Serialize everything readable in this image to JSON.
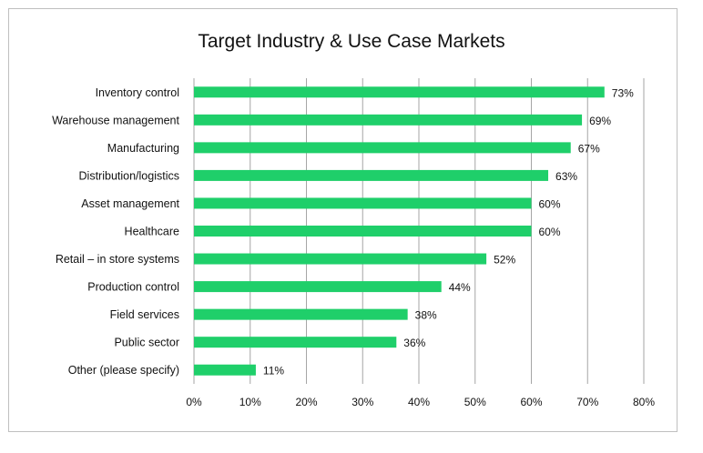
{
  "chart_data": {
    "type": "bar",
    "orientation": "horizontal",
    "title": "Target Industry & Use Case Markets",
    "categories": [
      "Inventory control",
      "Warehouse management",
      "Manufacturing",
      "Distribution/logistics",
      "Asset management",
      "Healthcare",
      "Retail – in store systems",
      "Production control",
      "Field services",
      "Public sector",
      "Other (please specify)"
    ],
    "values": [
      73,
      69,
      67,
      63,
      60,
      60,
      52,
      44,
      38,
      36,
      11
    ],
    "data_labels": [
      "73%",
      "69%",
      "67%",
      "63%",
      "60%",
      "60%",
      "52%",
      "44%",
      "38%",
      "36%",
      "11%"
    ],
    "xticks": [
      "0%",
      "10%",
      "20%",
      "30%",
      "40%",
      "50%",
      "60%",
      "70%",
      "80%"
    ],
    "xlim": [
      0,
      80
    ],
    "grid": "vertical",
    "bar_color": "#1fcf6a",
    "legend": "none"
  }
}
